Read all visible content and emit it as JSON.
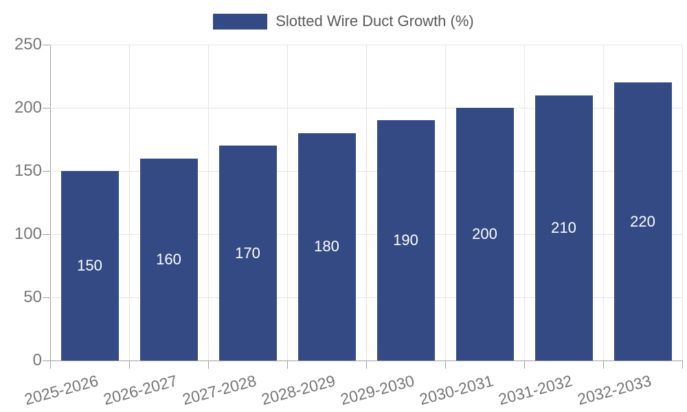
{
  "chart_data": {
    "type": "bar",
    "title": "",
    "legend_entries": [
      "Slotted Wire Duct Growth (%)"
    ],
    "legend_position": "top-center",
    "categories": [
      "2025-2026",
      "2026-2027",
      "2027-2028",
      "2028-2029",
      "2029-2030",
      "2030-2031",
      "2031-2032",
      "2032-2033"
    ],
    "values": [
      150,
      160,
      170,
      180,
      190,
      200,
      210,
      220
    ],
    "value_labels_shown": true,
    "value_label_position": "inside-center",
    "xlabel": "",
    "ylabel": "",
    "ylim": [
      0,
      250
    ],
    "yticks": [
      0,
      50,
      100,
      150,
      200,
      250
    ],
    "grid": true,
    "x_label_rotation_deg": -15
  },
  "colors": {
    "bar": "#334A84",
    "value_label": "#FFFFFF",
    "legend_text": "#595959",
    "tick_label": "#757575",
    "axis_line": "#9E9E9E",
    "gridline": "#E4E4E4",
    "background": "#FFFFFF"
  },
  "legend": {
    "label": "Slotted Wire Duct Growth (%)"
  }
}
